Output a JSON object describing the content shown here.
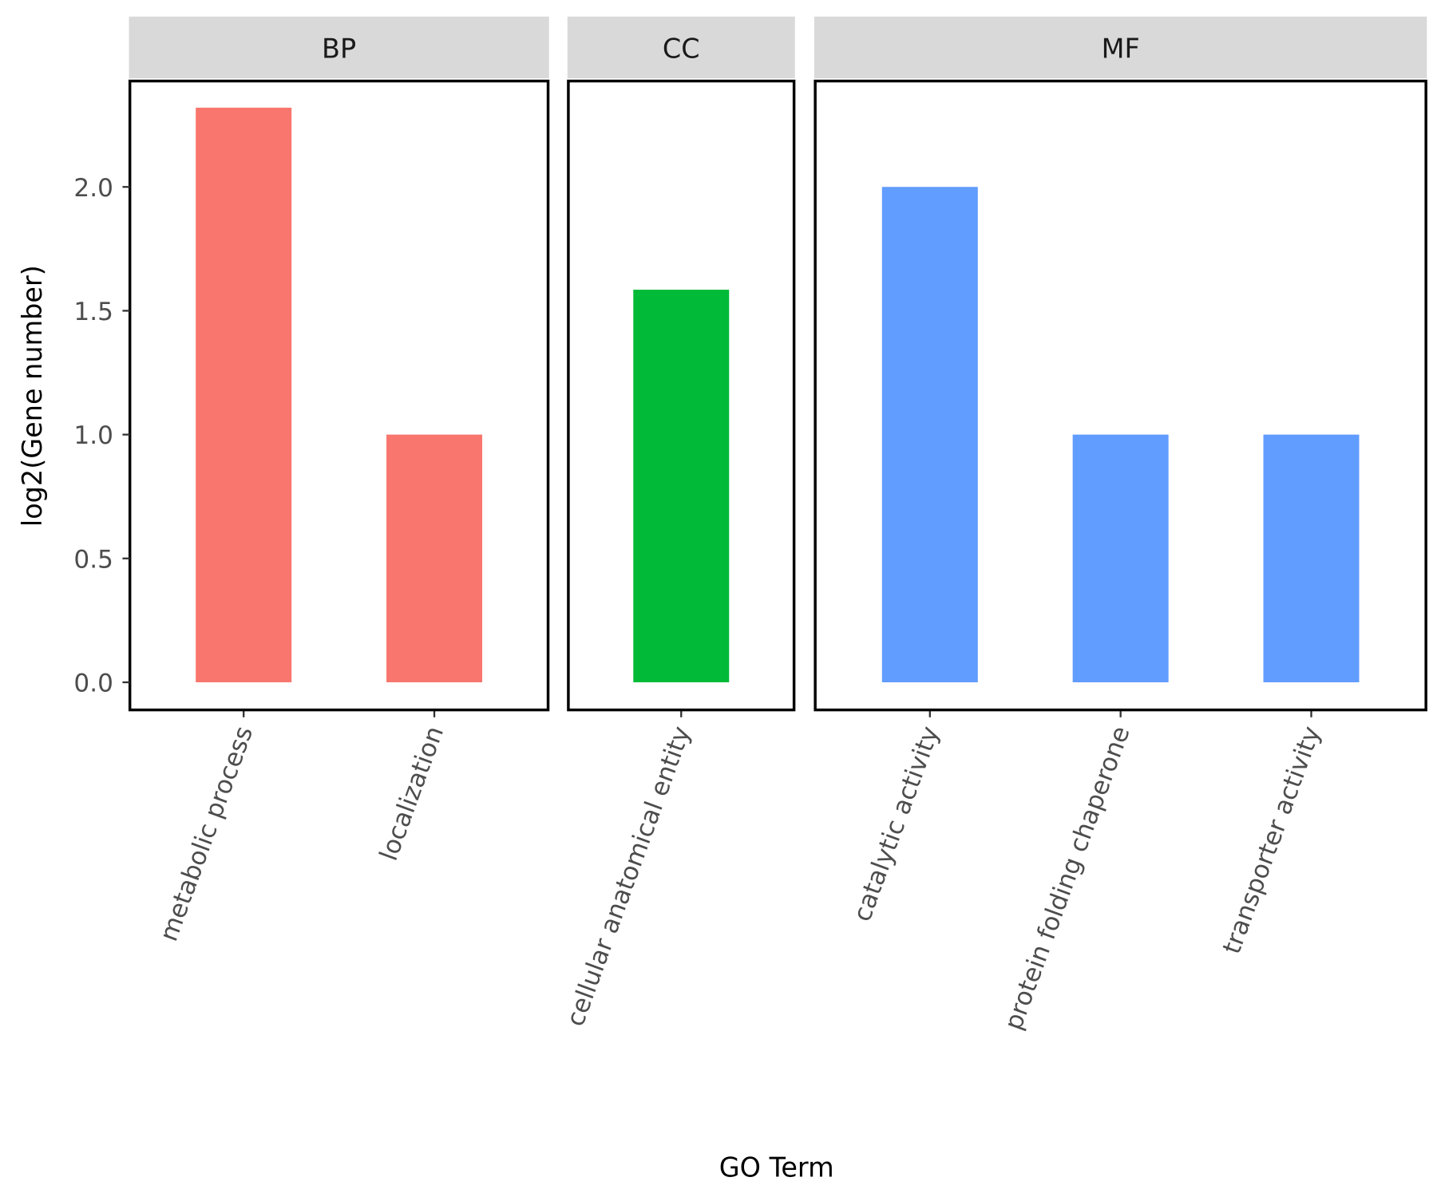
{
  "chart_data": {
    "type": "bar",
    "title": "",
    "xlabel": "GO Term",
    "ylabel": "log2(Gene number)",
    "ylim": [
      -0.11,
      2.43
    ],
    "yticks": [
      "0.0",
      "0.5",
      "1.0",
      "1.5",
      "2.0"
    ],
    "facets": [
      {
        "name": "BP",
        "color": "#F8766D",
        "categories": [
          "metabolic process",
          "localization"
        ],
        "values": [
          2.32,
          1.0
        ]
      },
      {
        "name": "CC",
        "color": "#00BA38",
        "categories": [
          "cellular anatomical entity"
        ],
        "values": [
          1.585
        ]
      },
      {
        "name": "MF",
        "color": "#619CFF",
        "categories": [
          "catalytic activity",
          "protein folding chaperone",
          "transporter activity"
        ],
        "values": [
          2.0,
          1.0,
          1.0
        ]
      }
    ],
    "grid": false,
    "legend": "none"
  }
}
